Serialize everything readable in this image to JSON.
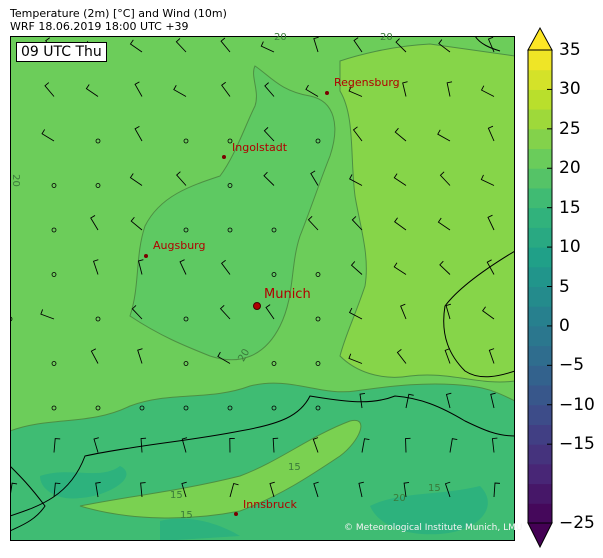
{
  "header": {
    "title": "Temperature (2m) [°C] and Wind (10m)",
    "subtitle": "WRF 18.06.2019 18:00 UTC +39"
  },
  "map": {
    "time_label": "09 UTC Thu",
    "cities": [
      {
        "name": "Regensburg"
      },
      {
        "name": "Ingolstadt"
      },
      {
        "name": "Augsburg"
      },
      {
        "name": "Munich"
      },
      {
        "name": "Innsbruck"
      }
    ],
    "contour_labels": [
      "20",
      "20",
      "20",
      "20",
      "15",
      "15",
      "15",
      "20",
      "15"
    ],
    "copyright": "© Meteorological Institute Munich, LMU",
    "fill_colors": {
      "lowland": "#6ccd5a",
      "east": "#86d549",
      "alps_mid": "#3fbc73",
      "alps_low": "#2db27d",
      "valley": "#7ad151"
    }
  },
  "colorbar": {
    "min": -25,
    "max": 35,
    "step": 2.5,
    "extend": "both",
    "colormap": "viridis",
    "ticks": [
      "35",
      "30",
      "25",
      "20",
      "15",
      "10",
      "5",
      "0",
      "−5",
      "−10",
      "−15",
      "−25"
    ],
    "tick_values": [
      35,
      30,
      25,
      20,
      15,
      10,
      5,
      0,
      -5,
      -10,
      -15,
      -25
    ]
  }
}
